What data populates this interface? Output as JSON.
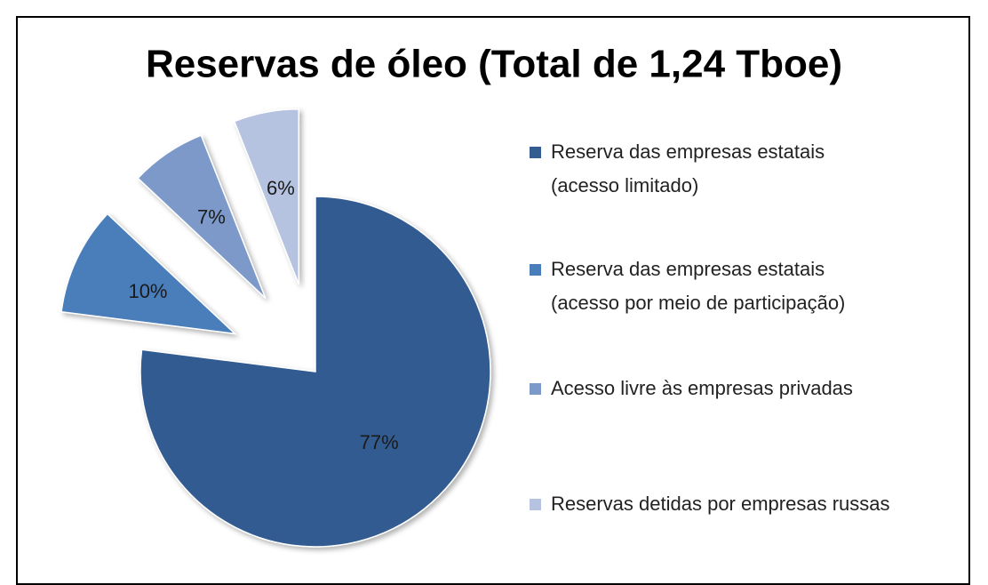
{
  "chart_data": {
    "type": "pie",
    "title": "Reservas de óleo (Total de 1,24 Tboe)",
    "categories": [
      "Reserva das empresas estatais\n(acesso limitado)",
      "Reserva das empresas estatais\n(acesso por meio de participação)",
      "Acesso livre às empresas privadas",
      "Reservas detidas por empresas russas"
    ],
    "values": [
      77,
      10,
      7,
      6
    ],
    "value_labels": [
      "77%",
      "10%",
      "7%",
      "6%"
    ],
    "colors": [
      "#335c91",
      "#4a7ebb",
      "#7b99c9",
      "#b5c3e1"
    ],
    "legend": "right"
  }
}
